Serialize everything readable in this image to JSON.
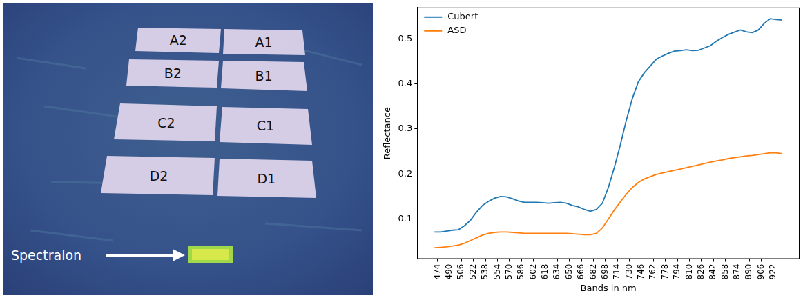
{
  "image_panel": {
    "patches": [
      "A2",
      "A1",
      "B2",
      "B1",
      "C2",
      "C1",
      "D2",
      "D1"
    ],
    "annotation": "Spectralon"
  },
  "chart_data": {
    "type": "line",
    "x_label": "Bands in nm",
    "y_label": "Reflectance",
    "x": [
      470,
      478,
      486,
      494,
      502,
      510,
      518,
      526,
      534,
      542,
      550,
      558,
      566,
      574,
      582,
      590,
      598,
      606,
      614,
      622,
      630,
      638,
      646,
      654,
      662,
      670,
      678,
      686,
      694,
      702,
      710,
      718,
      726,
      734,
      742,
      750,
      758,
      766,
      774,
      782,
      790,
      798,
      806,
      814,
      822,
      830,
      838,
      846,
      854,
      862,
      870,
      878,
      886,
      894,
      902,
      910,
      918,
      926,
      934
    ],
    "series": [
      {
        "name": "Cubert",
        "color": "#1f77b4",
        "values": [
          0.071,
          0.071,
          0.073,
          0.075,
          0.076,
          0.085,
          0.097,
          0.115,
          0.13,
          0.139,
          0.146,
          0.15,
          0.149,
          0.145,
          0.14,
          0.137,
          0.137,
          0.137,
          0.136,
          0.135,
          0.136,
          0.137,
          0.135,
          0.13,
          0.127,
          0.121,
          0.117,
          0.121,
          0.135,
          0.17,
          0.215,
          0.265,
          0.32,
          0.368,
          0.405,
          0.425,
          0.44,
          0.455,
          0.462,
          0.468,
          0.473,
          0.474,
          0.476,
          0.474,
          0.475,
          0.48,
          0.485,
          0.495,
          0.503,
          0.51,
          0.515,
          0.52,
          0.516,
          0.514,
          0.52,
          0.535,
          0.545,
          0.543,
          0.542
        ]
      },
      {
        "name": "ASD",
        "color": "#ff7f0e",
        "values": [
          0.036,
          0.037,
          0.038,
          0.04,
          0.042,
          0.046,
          0.052,
          0.058,
          0.064,
          0.068,
          0.07,
          0.071,
          0.071,
          0.07,
          0.069,
          0.068,
          0.068,
          0.068,
          0.068,
          0.068,
          0.068,
          0.068,
          0.068,
          0.067,
          0.066,
          0.065,
          0.065,
          0.068,
          0.08,
          0.1,
          0.12,
          0.138,
          0.155,
          0.17,
          0.181,
          0.189,
          0.194,
          0.199,
          0.202,
          0.205,
          0.208,
          0.211,
          0.214,
          0.217,
          0.22,
          0.223,
          0.226,
          0.229,
          0.231,
          0.234,
          0.236,
          0.238,
          0.24,
          0.241,
          0.243,
          0.245,
          0.247,
          0.247,
          0.245
        ]
      }
    ],
    "xlim": [
      447,
      957
    ],
    "xticks": [
      474,
      490,
      506,
      522,
      538,
      554,
      570,
      586,
      602,
      618,
      634,
      650,
      666,
      682,
      698,
      714,
      730,
      746,
      762,
      778,
      794,
      810,
      826,
      842,
      858,
      874,
      890,
      906,
      922
    ],
    "ylim": [
      0.011,
      0.57
    ],
    "yticks": [
      0.1,
      0.2,
      0.3,
      0.4,
      0.5
    ],
    "grid": false,
    "legend": "upper left"
  }
}
